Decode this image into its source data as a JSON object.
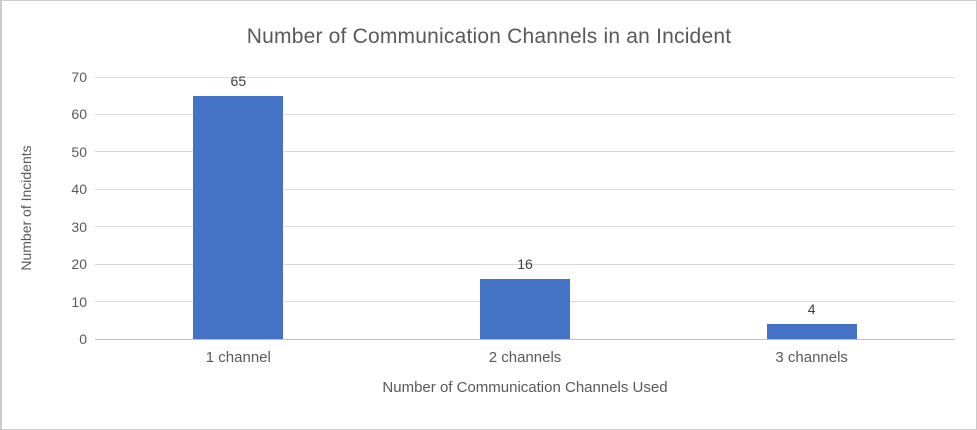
{
  "chart_data": {
    "type": "bar",
    "title": "Number of Communication Channels in an Incident",
    "xlabel": "Number of Communication Channels Used",
    "ylabel": "Number of Incidents",
    "categories": [
      "1 channel",
      "2 channels",
      "3 channels"
    ],
    "values": [
      65,
      16,
      4
    ],
    "data_labels": [
      "65",
      "16",
      "4"
    ],
    "yticks": [
      0,
      10,
      20,
      30,
      40,
      50,
      60,
      70
    ],
    "ylim": [
      0,
      70
    ],
    "grid": true,
    "legend": false,
    "bar_color": "#4472C4",
    "colors": {
      "title_text": "#595959",
      "axis_text": "#595959",
      "data_label_text": "#404040",
      "gridline": "#D9D9D9",
      "axis_line": "#BFBFBF",
      "background": "#FFFFFF"
    }
  }
}
